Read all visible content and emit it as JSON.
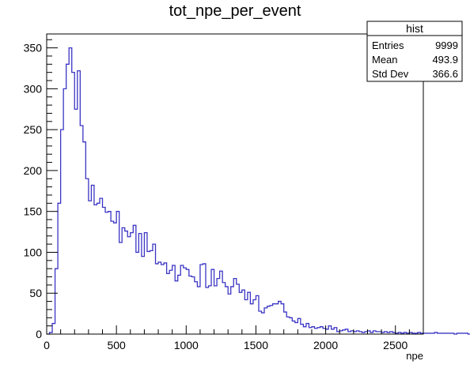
{
  "chart_data": {
    "type": "histogram",
    "title": "tot_npe_per_event",
    "xlabel": "npe",
    "ylabel": "",
    "xlim": [
      0,
      2700
    ],
    "ylim": [
      0,
      367
    ],
    "x_ticks": [
      0,
      500,
      1000,
      1500,
      2000,
      2500
    ],
    "y_ticks": [
      0,
      50,
      100,
      150,
      200,
      250,
      300,
      350
    ],
    "bin_width": 20,
    "line_color": "#3b35c4",
    "grid": false,
    "values": [
      0,
      2,
      13,
      80,
      160,
      250,
      300,
      330,
      350,
      320,
      275,
      322,
      255,
      235,
      190,
      163,
      182,
      158,
      160,
      166,
      155,
      149,
      150,
      138,
      136,
      150,
      112,
      130,
      126,
      119,
      124,
      133,
      100,
      123,
      95,
      124,
      101,
      102,
      110,
      86,
      88,
      85,
      87,
      74,
      78,
      84,
      65,
      72,
      84,
      81,
      79,
      71,
      70,
      64,
      58,
      85,
      86,
      57,
      59,
      79,
      59,
      68,
      77,
      63,
      58,
      49,
      58,
      68,
      61,
      51,
      54,
      42,
      51,
      37,
      42,
      47,
      28,
      26,
      32,
      34,
      35,
      37,
      37,
      40,
      37,
      27,
      21,
      20,
      16,
      14,
      19,
      12,
      9,
      13,
      8,
      9,
      7,
      8,
      9,
      7,
      6,
      10,
      6,
      8,
      3,
      4,
      5,
      6,
      3,
      4,
      3,
      4,
      3,
      2,
      3,
      4,
      2,
      4,
      3,
      3,
      2,
      3,
      2,
      3,
      2,
      1,
      2,
      1,
      2,
      1,
      2,
      1,
      1,
      2,
      1,
      1,
      1,
      1,
      1,
      2,
      1,
      1,
      1,
      1,
      1,
      1,
      0,
      1,
      1,
      1,
      1,
      0,
      1,
      1,
      1,
      1,
      0,
      1,
      1,
      1,
      0,
      1,
      0,
      1,
      1,
      0,
      1,
      1,
      0,
      1,
      1,
      1,
      0,
      1,
      0,
      1,
      0,
      1,
      1,
      1,
      0,
      0,
      1,
      1,
      0,
      1,
      0,
      1,
      0,
      1,
      0,
      0,
      1,
      0,
      1,
      1,
      1,
      0,
      1,
      1,
      0,
      1,
      1,
      0,
      1,
      1,
      1,
      0,
      1,
      1,
      1,
      1,
      1,
      1,
      1,
      1,
      0,
      1
    ],
    "stats_box": {
      "title": "hist",
      "rows": [
        {
          "label": "Entries",
          "value": "9999"
        },
        {
          "label": "Mean",
          "value": "493.9"
        },
        {
          "label": "Std Dev",
          "value": "366.6"
        }
      ]
    }
  }
}
